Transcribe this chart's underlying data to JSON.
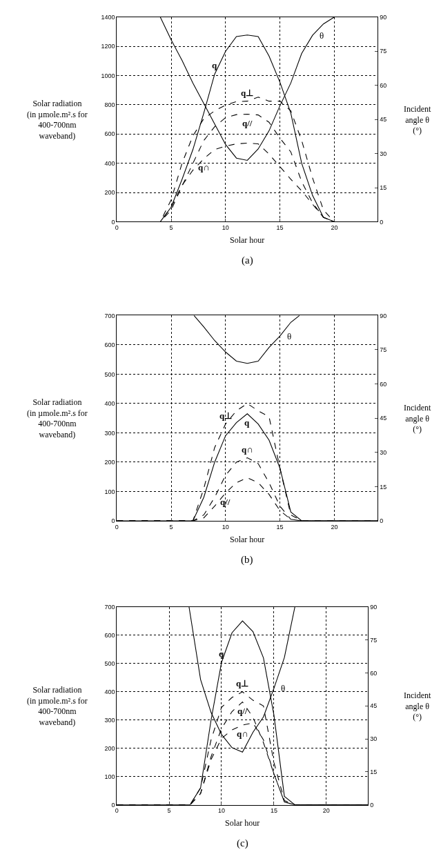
{
  "chart_data": [
    {
      "type": "line",
      "xlabel": "Solar hour",
      "ylabel": "Solar radiation\n(in µmole.m².s for\n400-700nm\nwaveband)",
      "y2label": "Incident\nangle θ\n(°)",
      "annotations": [
        "(a)"
      ],
      "x": [
        0,
        1,
        2,
        3,
        4,
        5,
        6,
        7,
        8,
        9,
        10,
        11,
        12,
        13,
        14,
        15,
        16,
        17,
        18,
        19,
        20,
        21,
        22,
        23,
        24
      ],
      "xlim": [
        0,
        24
      ],
      "xticks": [
        0,
        5,
        10,
        15,
        20
      ],
      "ylim": [
        0,
        1400
      ],
      "yticks": [
        0,
        200,
        400,
        600,
        800,
        1000,
        1200,
        1400
      ],
      "y2lim": [
        0,
        90
      ],
      "y2ticks": [
        0,
        15,
        30,
        45,
        60,
        75,
        90
      ],
      "grid": true,
      "marker": "none",
      "series": [
        {
          "name": "q",
          "color": "#000000",
          "line_style": "solid",
          "values": [
            0,
            0,
            0,
            0,
            0,
            100,
            290,
            494,
            744,
            1010,
            1166,
            1267,
            1278,
            1267,
            1134,
            955,
            744,
            400,
            180,
            30,
            0,
            0,
            0,
            0,
            0
          ]
        },
        {
          "name": "q⊥",
          "color": "#000000",
          "line_style": "dashed",
          "values": [
            0,
            0,
            0,
            0,
            0,
            150,
            400,
            588,
            705,
            759,
            798,
            822,
            825,
            853,
            825,
            825,
            759,
            556,
            300,
            80,
            0,
            0,
            0,
            0,
            0
          ]
        },
        {
          "name": "q//",
          "color": "#000000",
          "line_style": "dashed",
          "values": [
            0,
            0,
            0,
            0,
            0,
            80,
            244,
            400,
            556,
            650,
            712,
            733,
            736,
            731,
            681,
            572,
            478,
            275,
            130,
            30,
            0,
            0,
            0,
            0,
            0
          ]
        },
        {
          "name": "q∩",
          "color": "#000000",
          "line_style": "dashed",
          "values": [
            0,
            0,
            0,
            0,
            0,
            100,
            250,
            353,
            431,
            494,
            517,
            533,
            538,
            533,
            463,
            377,
            291,
            212,
            120,
            30,
            0,
            0,
            0,
            0,
            0
          ]
        },
        {
          "name": "θ",
          "color": "#000000",
          "line_style": "solid",
          "axis": "y2",
          "x": [
            4,
            5,
            6,
            7,
            8,
            9,
            10,
            11,
            12,
            13,
            14,
            15,
            16,
            17,
            18,
            19,
            20
          ],
          "values": [
            90,
            80,
            71,
            61,
            52,
            43,
            34,
            28,
            27,
            32,
            40,
            51,
            61,
            74,
            82,
            87,
            90
          ]
        }
      ]
    },
    {
      "type": "line",
      "xlabel": "Solar hour",
      "ylabel": "Solar radiation\n(in µmole.m².s for\n400-700nm\nwaveband)",
      "y2label": "Incident\nangle θ\n(°)",
      "annotations": [
        "(b)"
      ],
      "x": [
        0,
        1,
        2,
        3,
        4,
        5,
        6,
        7,
        8,
        9,
        10,
        11,
        12,
        13,
        14,
        15,
        16,
        17,
        18,
        19,
        20,
        21,
        22,
        23,
        24
      ],
      "xlim": [
        0,
        24
      ],
      "xticks": [
        0,
        5,
        10,
        15,
        20
      ],
      "ylim": [
        0,
        700
      ],
      "yticks": [
        0,
        100,
        200,
        300,
        400,
        500,
        600,
        700
      ],
      "y2lim": [
        0,
        90
      ],
      "y2ticks": [
        0,
        15,
        30,
        45,
        60,
        75,
        90
      ],
      "grid": true,
      "marker": "none",
      "series": [
        {
          "name": "q",
          "color": "#000000",
          "line_style": "solid",
          "values": [
            0,
            0,
            0,
            0,
            0,
            0,
            0,
            0,
            80,
            200,
            290,
            335,
            365,
            330,
            275,
            180,
            30,
            0,
            0,
            0,
            0,
            0,
            0,
            0,
            0
          ]
        },
        {
          "name": "q⊥",
          "color": "#000000",
          "line_style": "dashed",
          "values": [
            0,
            0,
            0,
            0,
            0,
            0,
            0,
            0,
            110,
            250,
            330,
            375,
            400,
            375,
            355,
            180,
            20,
            0,
            0,
            0,
            0,
            0,
            0,
            0,
            0
          ]
        },
        {
          "name": "q//",
          "color": "#000000",
          "line_style": "dashed",
          "values": [
            0,
            0,
            0,
            0,
            0,
            0,
            0,
            0,
            10,
            50,
            95,
            130,
            147,
            130,
            90,
            35,
            5,
            0,
            0,
            0,
            0,
            0,
            0,
            0,
            0
          ]
        },
        {
          "name": "q∩",
          "color": "#000000",
          "line_style": "dashed",
          "values": [
            0,
            0,
            0,
            0,
            0,
            0,
            0,
            0,
            20,
            80,
            155,
            200,
            215,
            195,
            130,
            50,
            5,
            0,
            0,
            0,
            0,
            0,
            0,
            0,
            0
          ]
        },
        {
          "name": "θ",
          "color": "#000000",
          "line_style": "solid",
          "axis": "y2",
          "x": [
            7.1,
            8,
            9,
            10,
            11,
            12,
            13,
            14,
            15,
            16,
            16.8
          ],
          "values": [
            90,
            85,
            79,
            74,
            70,
            69,
            70,
            76,
            81,
            87,
            90
          ]
        }
      ]
    },
    {
      "type": "line",
      "xlabel": "Solar hour",
      "ylabel": "Solar radiation\n(in µmole.m².s for\n400-700nm\nwaveband)",
      "y2label": "Incident\nangle θ\n(°)",
      "annotations": [
        "(c)"
      ],
      "x": [
        0,
        1,
        2,
        3,
        4,
        5,
        6,
        7,
        8,
        9,
        10,
        11,
        12,
        13,
        14,
        15,
        16,
        17,
        18,
        19,
        20,
        21,
        22,
        23,
        24
      ],
      "xlim": [
        0,
        24
      ],
      "xticks": [
        0,
        5,
        10,
        15,
        20
      ],
      "ylim": [
        0,
        700
      ],
      "yticks": [
        0,
        100,
        200,
        300,
        400,
        500,
        600,
        700
      ],
      "y2lim": [
        0,
        90
      ],
      "y2ticks": [
        0,
        15,
        30,
        45,
        60,
        75,
        90
      ],
      "grid": true,
      "marker": "none",
      "series": [
        {
          "name": "q",
          "color": "#000000",
          "line_style": "solid",
          "values": [
            0,
            0,
            0,
            0,
            0,
            0,
            0,
            0,
            60,
            300,
            504,
            609,
            651,
            613,
            520,
            318,
            30,
            0,
            0,
            0,
            0,
            0,
            0,
            0,
            0
          ]
        },
        {
          "name": "q⊥",
          "color": "#000000",
          "line_style": "dashed",
          "values": [
            0,
            0,
            0,
            0,
            0,
            0,
            0,
            0,
            60,
            230,
            345,
            380,
            400,
            370,
            350,
            150,
            15,
            0,
            0,
            0,
            0,
            0,
            0,
            0,
            0
          ]
        },
        {
          "name": "q//",
          "color": "#000000",
          "line_style": "dashed",
          "values": [
            0,
            0,
            0,
            0,
            0,
            0,
            0,
            0,
            40,
            170,
            270,
            330,
            364,
            310,
            220,
            110,
            10,
            0,
            0,
            0,
            0,
            0,
            0,
            0,
            0
          ]
        },
        {
          "name": "q∩",
          "color": "#000000",
          "line_style": "dashed",
          "values": [
            0,
            0,
            0,
            0,
            0,
            0,
            0,
            0,
            40,
            160,
            235,
            265,
            282,
            290,
            230,
            110,
            10,
            0,
            0,
            0,
            0,
            0,
            0,
            0,
            0
          ]
        },
        {
          "name": "θ",
          "color": "#000000",
          "line_style": "solid",
          "axis": "y2",
          "x": [
            6.9,
            8,
            9,
            10,
            11,
            12,
            13,
            14,
            15,
            16,
            17
          ],
          "values": [
            90,
            57,
            42,
            32,
            26,
            24,
            33,
            40,
            53,
            67,
            90
          ]
        }
      ]
    }
  ]
}
